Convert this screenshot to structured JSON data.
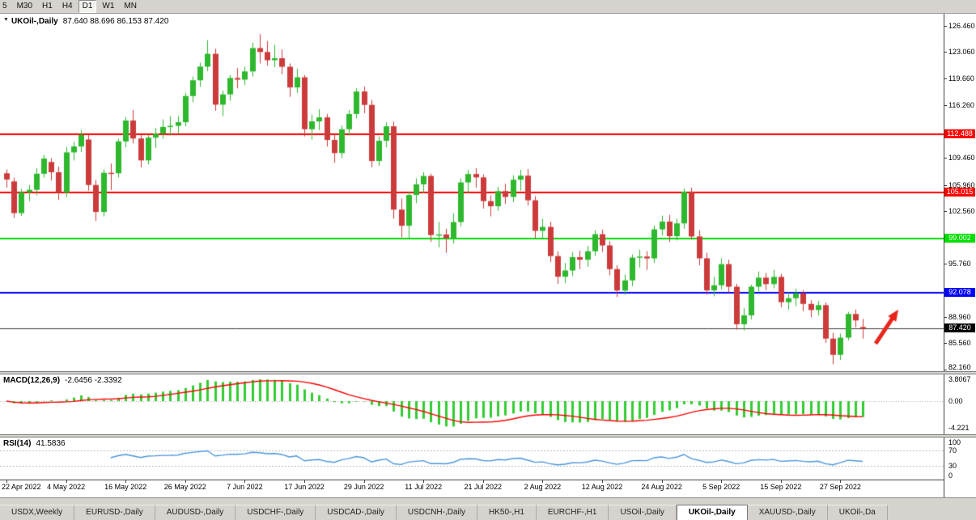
{
  "toolbar": {
    "periods": [
      {
        "label": "5",
        "active": false
      },
      {
        "label": "M30",
        "active": false
      },
      {
        "label": "H1",
        "active": false
      },
      {
        "label": "H4",
        "active": false
      },
      {
        "label": "D1",
        "active": true
      },
      {
        "label": "W1",
        "active": false
      },
      {
        "label": "MN",
        "active": false
      }
    ]
  },
  "chart": {
    "dropdown_icon": "▼",
    "title": "UKOil-,Daily",
    "ohlc_text": "87.640 88.696 86.153 87.420"
  },
  "macd_panel": {
    "label": "MACD(12,26,9)",
    "values": "-2.6456 -2.3392",
    "ticks": [
      "3.8067",
      "0.00",
      "-4.221"
    ]
  },
  "rsi_panel": {
    "label": "RSI(14)",
    "value": "41.5836",
    "ticks": [
      "100",
      "70",
      "30",
      "0"
    ]
  },
  "tabs": [
    {
      "label": "USDX,Weekly",
      "active": false
    },
    {
      "label": "EURUSD-,Daily",
      "active": false
    },
    {
      "label": "AUDUSD-,Daily",
      "active": false
    },
    {
      "label": "USDCHF-,Daily",
      "active": false
    },
    {
      "label": "USDCAD-,Daily",
      "active": false
    },
    {
      "label": "USDCNH-,Daily",
      "active": false
    },
    {
      "label": "HK50-,H1",
      "active": false
    },
    {
      "label": "EURCHF-,H1",
      "active": false
    },
    {
      "label": "USOil-,Daily",
      "active": false
    },
    {
      "label": "UKOil-,Daily",
      "active": true
    },
    {
      "label": "XAUUSD-,Daily",
      "active": false
    },
    {
      "label": "UKOil-,Da",
      "active": false
    }
  ],
  "colors": {
    "bull": "#2EB82E",
    "bear": "#CC3B3B",
    "macd_hist": "#32CD32",
    "macd_signal": "#FF0000",
    "rsi_line": "#4C96DC",
    "current_line": "#3A3A3A",
    "current_label_bg": "#000000"
  },
  "chart_data": {
    "type": "candlestick",
    "symbol": "UKOil-",
    "timeframe": "Daily",
    "last_ohlc": {
      "open": "87.640",
      "high": "88.696",
      "low": "86.153",
      "close": "87.420"
    },
    "price_range": {
      "min": 81.95,
      "max": 128.0
    },
    "y_ticks": [
      "126.460",
      "123.060",
      "119.660",
      "116.260",
      "109.460",
      "105.960",
      "102.560",
      "95.760",
      "88.960",
      "85.560",
      "82.160"
    ],
    "levels": [
      {
        "price": 112.488,
        "label": "112.488",
        "color": "#FF0000"
      },
      {
        "price": 105.015,
        "label": "105.015",
        "color": "#FF0000"
      },
      {
        "price": 99.002,
        "label": "99.002",
        "color": "#00DD00"
      },
      {
        "price": 92.078,
        "label": "92.078",
        "color": "#0000FF"
      }
    ],
    "current_price": {
      "value": 87.42,
      "label": "87.420"
    },
    "arrow": {
      "tail_dx": 16,
      "tail_price": 85.5,
      "head_dx": 44,
      "head_price": 89.9,
      "color": "#E8251B"
    },
    "indicators": {
      "macd_fast": 12,
      "macd_slow": 26,
      "macd_signal": 9,
      "rsi_period": 14
    },
    "x_labels": [
      {
        "i": 0,
        "label": "22 Apr 2022"
      },
      {
        "i": 8,
        "label": "4 May 2022"
      },
      {
        "i": 16,
        "label": "16 May 2022"
      },
      {
        "i": 24,
        "label": "26 May 2022"
      },
      {
        "i": 32,
        "label": "7 Jun 2022"
      },
      {
        "i": 40,
        "label": "17 Jun 2022"
      },
      {
        "i": 48,
        "label": "29 Jun 2022"
      },
      {
        "i": 56,
        "label": "11 Jul 2022"
      },
      {
        "i": 64,
        "label": "21 Jul 2022"
      },
      {
        "i": 72,
        "label": "2 Aug 2022"
      },
      {
        "i": 80,
        "label": "12 Aug 2022"
      },
      {
        "i": 88,
        "label": "24 Aug 2022"
      },
      {
        "i": 96,
        "label": "5 Sep 2022"
      },
      {
        "i": 104,
        "label": "15 Sep 2022"
      },
      {
        "i": 112,
        "label": "27 Sep 2022"
      }
    ],
    "candles": [
      [
        107.45,
        107.95,
        105.6,
        106.65
      ],
      [
        106.4,
        106.9,
        101.7,
        102.32
      ],
      [
        102.32,
        105.45,
        101.95,
        104.99
      ],
      [
        104.99,
        105.95,
        103.85,
        105.32
      ],
      [
        105.32,
        108.1,
        104.6,
        107.39
      ],
      [
        107.39,
        109.8,
        106.9,
        109.34
      ],
      [
        108.9,
        109.4,
        106.5,
        107.58
      ],
      [
        107.58,
        108.3,
        104.0,
        104.97
      ],
      [
        104.97,
        110.8,
        104.4,
        110.14
      ],
      [
        110.14,
        111.5,
        109.1,
        110.9
      ],
      [
        110.9,
        113.0,
        110.2,
        112.39
      ],
      [
        111.8,
        112.4,
        105.2,
        105.94
      ],
      [
        105.94,
        106.6,
        101.3,
        102.46
      ],
      [
        102.46,
        107.95,
        101.9,
        107.51
      ],
      [
        107.51,
        108.7,
        105.3,
        107.45
      ],
      [
        107.45,
        111.9,
        106.9,
        111.55
      ],
      [
        111.55,
        114.7,
        110.8,
        114.24
      ],
      [
        114.24,
        115.6,
        111.3,
        111.93
      ],
      [
        111.93,
        112.4,
        108.2,
        109.11
      ],
      [
        109.11,
        112.4,
        108.6,
        112.04
      ],
      [
        112.04,
        113.3,
        110.7,
        112.55
      ],
      [
        112.55,
        114.4,
        111.9,
        113.42
      ],
      [
        113.42,
        114.8,
        112.3,
        113.56
      ],
      [
        113.56,
        114.85,
        112.5,
        114.03
      ],
      [
        114.03,
        117.8,
        113.5,
        117.4
      ],
      [
        117.4,
        119.9,
        116.6,
        119.43
      ],
      [
        119.43,
        121.7,
        118.6,
        121.19
      ],
      [
        121.19,
        124.6,
        120.6,
        122.84
      ],
      [
        122.84,
        123.5,
        115.5,
        116.29
      ],
      [
        116.29,
        118.1,
        114.8,
        117.61
      ],
      [
        117.61,
        120.1,
        116.8,
        119.72
      ],
      [
        119.72,
        121.0,
        118.4,
        119.51
      ],
      [
        119.51,
        121.2,
        118.8,
        120.57
      ],
      [
        120.57,
        124.3,
        119.9,
        123.58
      ],
      [
        123.58,
        125.38,
        121.6,
        123.07
      ],
      [
        123.07,
        124.5,
        121.3,
        122.01
      ],
      [
        122.01,
        124.0,
        121.1,
        122.27
      ],
      [
        122.27,
        123.4,
        120.2,
        121.17
      ],
      [
        121.17,
        121.6,
        117.3,
        118.51
      ],
      [
        118.51,
        120.9,
        117.8,
        119.81
      ],
      [
        119.81,
        120.1,
        112.2,
        113.12
      ],
      [
        113.12,
        115.0,
        111.8,
        114.13
      ],
      [
        114.13,
        115.7,
        113.0,
        114.65
      ],
      [
        114.65,
        115.1,
        110.9,
        111.74
      ],
      [
        111.74,
        112.5,
        108.8,
        110.05
      ],
      [
        110.05,
        113.6,
        109.4,
        113.12
      ],
      [
        113.12,
        115.6,
        112.3,
        115.09
      ],
      [
        115.09,
        118.4,
        114.5,
        117.98
      ],
      [
        117.98,
        118.6,
        115.2,
        116.26
      ],
      [
        116.26,
        116.9,
        108.2,
        109.03
      ],
      [
        109.03,
        112.2,
        108.4,
        111.63
      ],
      [
        111.63,
        114.0,
        110.8,
        113.5
      ],
      [
        113.5,
        114.1,
        101.6,
        102.77
      ],
      [
        102.77,
        104.2,
        99.2,
        100.69
      ],
      [
        100.69,
        105.1,
        98.9,
        104.65
      ],
      [
        104.65,
        106.8,
        103.6,
        106.02
      ],
      [
        106.02,
        107.6,
        104.9,
        107.1
      ],
      [
        107.1,
        107.4,
        98.6,
        99.49
      ],
      [
        99.49,
        101.2,
        97.9,
        99.57
      ],
      [
        99.57,
        100.3,
        97.2,
        99.1
      ],
      [
        99.1,
        102.3,
        98.4,
        101.16
      ],
      [
        101.16,
        106.8,
        100.6,
        106.27
      ],
      [
        106.27,
        107.9,
        104.9,
        107.35
      ],
      [
        107.35,
        108.1,
        105.6,
        106.92
      ],
      [
        106.92,
        107.3,
        102.9,
        103.86
      ],
      [
        103.86,
        104.6,
        101.9,
        103.2
      ],
      [
        103.2,
        105.7,
        102.6,
        105.15
      ],
      [
        105.15,
        106.1,
        103.5,
        104.4
      ],
      [
        104.4,
        107.2,
        103.7,
        106.62
      ],
      [
        106.62,
        107.9,
        105.2,
        107.14
      ],
      [
        107.14,
        108.0,
        103.3,
        103.97
      ],
      [
        103.97,
        104.5,
        99.1,
        100.03
      ],
      [
        100.03,
        101.6,
        99.0,
        100.54
      ],
      [
        100.54,
        101.2,
        96.0,
        96.78
      ],
      [
        96.78,
        97.4,
        93.2,
        94.12
      ],
      [
        94.12,
        95.9,
        93.3,
        94.92
      ],
      [
        94.92,
        97.3,
        94.2,
        96.65
      ],
      [
        96.65,
        97.5,
        95.1,
        96.31
      ],
      [
        96.31,
        98.1,
        95.4,
        97.4
      ],
      [
        97.4,
        100.1,
        96.8,
        99.6
      ],
      [
        99.6,
        100.2,
        97.3,
        98.15
      ],
      [
        98.15,
        98.7,
        94.3,
        95.1
      ],
      [
        95.1,
        95.6,
        91.51,
        92.34
      ],
      [
        92.34,
        94.4,
        91.8,
        93.65
      ],
      [
        93.65,
        97.0,
        92.9,
        96.59
      ],
      [
        96.59,
        97.6,
        95.3,
        96.72
      ],
      [
        96.72,
        97.4,
        95.0,
        96.48
      ],
      [
        96.48,
        100.7,
        95.9,
        100.22
      ],
      [
        100.22,
        102.0,
        99.4,
        101.22
      ],
      [
        101.22,
        102.1,
        98.6,
        99.34
      ],
      [
        99.34,
        101.6,
        98.8,
        100.99
      ],
      [
        100.99,
        105.48,
        100.3,
        105.09
      ],
      [
        105.09,
        105.6,
        98.9,
        99.31
      ],
      [
        99.31,
        100.1,
        95.6,
        96.49
      ],
      [
        96.49,
        97.2,
        91.8,
        92.36
      ],
      [
        92.36,
        94.1,
        91.6,
        93.02
      ],
      [
        93.02,
        96.5,
        92.5,
        95.74
      ],
      [
        95.74,
        96.3,
        92.1,
        92.83
      ],
      [
        92.83,
        93.2,
        87.3,
        88.0
      ],
      [
        88.0,
        90.1,
        87.2,
        89.15
      ],
      [
        89.15,
        93.1,
        88.6,
        92.84
      ],
      [
        92.84,
        94.8,
        92.2,
        94.0
      ],
      [
        94.0,
        94.6,
        92.4,
        93.17
      ],
      [
        93.17,
        95.0,
        92.6,
        94.1
      ],
      [
        94.1,
        94.5,
        90.2,
        90.84
      ],
      [
        90.84,
        92.1,
        89.9,
        91.35
      ],
      [
        91.35,
        92.6,
        90.3,
        92.0
      ],
      [
        92.0,
        92.4,
        89.7,
        90.62
      ],
      [
        90.62,
        91.1,
        88.9,
        89.83
      ],
      [
        89.83,
        91.0,
        89.1,
        90.46
      ],
      [
        90.46,
        90.8,
        85.6,
        86.15
      ],
      [
        86.15,
        86.9,
        82.85,
        84.06
      ],
      [
        84.06,
        86.8,
        83.4,
        86.27
      ],
      [
        86.27,
        89.6,
        85.9,
        89.32
      ],
      [
        89.32,
        89.9,
        87.6,
        88.49
      ],
      [
        87.64,
        88.696,
        86.153,
        87.42
      ]
    ]
  }
}
